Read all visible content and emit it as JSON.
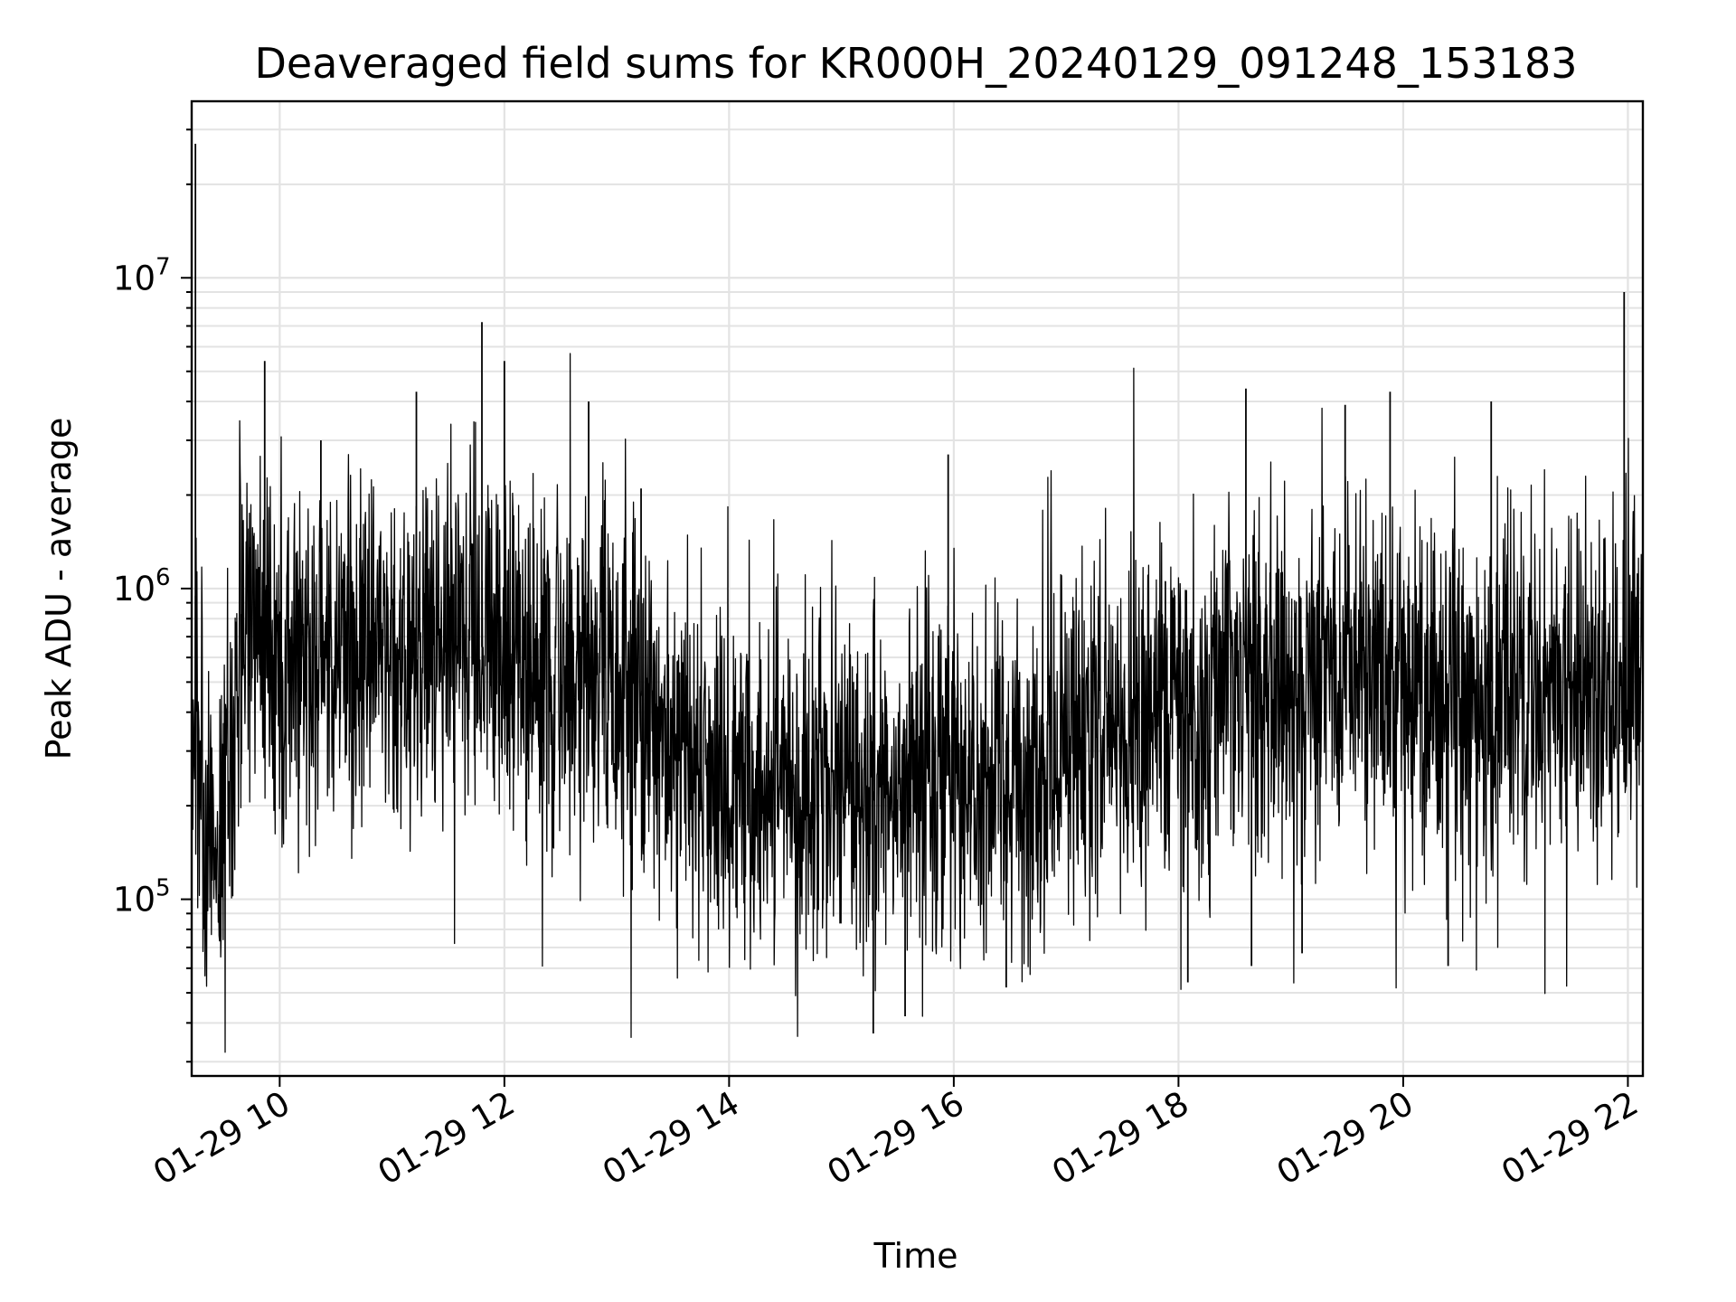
{
  "chart_data": {
    "type": "line",
    "title": "Deaveraged field sums for KR000H_20240129_091248_153183",
    "xlabel": "Time",
    "ylabel": "Peak ADU - average",
    "y_scale": "log",
    "grid": true,
    "line_color": "#000000",
    "x_ticks": [
      {
        "value": "2024-01-29 10:00",
        "label": "01-29 10"
      },
      {
        "value": "2024-01-29 12:00",
        "label": "01-29 12"
      },
      {
        "value": "2024-01-29 14:00",
        "label": "01-29 14"
      },
      {
        "value": "2024-01-29 16:00",
        "label": "01-29 16"
      },
      {
        "value": "2024-01-29 18:00",
        "label": "01-29 18"
      },
      {
        "value": "2024-01-29 20:00",
        "label": "01-29 20"
      },
      {
        "value": "2024-01-29 22:00",
        "label": "01-29 22"
      }
    ],
    "y_ticks": [
      {
        "value": 100000,
        "base": "10",
        "exp": "5"
      },
      {
        "value": 1000000,
        "base": "10",
        "exp": "6"
      },
      {
        "value": 10000000,
        "base": "10",
        "exp": "7"
      }
    ],
    "xlim": [
      "2024-01-29 09:13",
      "2024-01-29 22:08"
    ],
    "ylim": [
      27000,
      37000000
    ],
    "series": [
      {
        "x": [
          "2024-01-29 09:13",
          "2024-01-29 09:20",
          "2024-01-29 09:30",
          "2024-01-29 09:40",
          "2024-01-29 09:50",
          "2024-01-29 10:00",
          "2024-01-29 10:15",
          "2024-01-29 10:30",
          "2024-01-29 10:45",
          "2024-01-29 11:00",
          "2024-01-29 11:15",
          "2024-01-29 11:30",
          "2024-01-29 11:45",
          "2024-01-29 12:00",
          "2024-01-29 12:15",
          "2024-01-29 12:30",
          "2024-01-29 12:45",
          "2024-01-29 13:00",
          "2024-01-29 13:15",
          "2024-01-29 13:30",
          "2024-01-29 13:45",
          "2024-01-29 14:00",
          "2024-01-29 14:15",
          "2024-01-29 14:30",
          "2024-01-29 14:45",
          "2024-01-29 15:00",
          "2024-01-29 15:15",
          "2024-01-29 15:30",
          "2024-01-29 15:45",
          "2024-01-29 16:00",
          "2024-01-29 16:15",
          "2024-01-29 16:30",
          "2024-01-29 16:45",
          "2024-01-29 17:00",
          "2024-01-29 17:15",
          "2024-01-29 17:30",
          "2024-01-29 17:45",
          "2024-01-29 18:00",
          "2024-01-29 18:15",
          "2024-01-29 18:30",
          "2024-01-29 18:45",
          "2024-01-29 19:00",
          "2024-01-29 19:15",
          "2024-01-29 19:30",
          "2024-01-29 19:45",
          "2024-01-29 20:00",
          "2024-01-29 20:15",
          "2024-01-29 20:30",
          "2024-01-29 20:45",
          "2024-01-29 21:00",
          "2024-01-29 21:15",
          "2024-01-29 21:30",
          "2024-01-29 21:45",
          "2024-01-29 22:00",
          "2024-01-29 22:08"
        ],
        "values": [
          400000,
          150000,
          180000,
          650000,
          700000,
          600000,
          620000,
          580000,
          600000,
          620000,
          600000,
          630000,
          650000,
          640000,
          600000,
          520000,
          480000,
          460000,
          450000,
          300000,
          260000,
          230000,
          220000,
          210000,
          200000,
          210000,
          220000,
          240000,
          250000,
          250000,
          245000,
          260000,
          280000,
          300000,
          320000,
          340000,
          360000,
          380000,
          420000,
          450000,
          480000,
          500000,
          520000,
          500000,
          490000,
          500000,
          520000,
          480000,
          500000,
          520000,
          500000,
          480000,
          470000,
          500000,
          520000
        ]
      }
    ],
    "spikes": [
      {
        "x": "2024-01-29 09:15",
        "y": 27000000
      },
      {
        "x": "2024-01-29 09:52",
        "y": 5400000
      },
      {
        "x": "2024-01-29 10:22",
        "y": 3000000
      },
      {
        "x": "2024-01-29 11:13",
        "y": 4300000
      },
      {
        "x": "2024-01-29 11:48",
        "y": 7200000
      },
      {
        "x": "2024-01-29 12:00",
        "y": 5400000
      },
      {
        "x": "2024-01-29 12:45",
        "y": 4000000
      },
      {
        "x": "2024-01-29 13:13",
        "y": 2100000
      },
      {
        "x": "2024-01-29 15:57",
        "y": 2700000
      },
      {
        "x": "2024-01-29 18:36",
        "y": 4400000
      },
      {
        "x": "2024-01-29 19:29",
        "y": 3900000
      },
      {
        "x": "2024-01-29 19:53",
        "y": 4300000
      },
      {
        "x": "2024-01-29 20:47",
        "y": 4000000
      },
      {
        "x": "2024-01-29 21:58",
        "y": 9000000
      },
      {
        "x": "2024-01-29 15:17",
        "y": 37000
      },
      {
        "x": "2024-01-29 15:34",
        "y": 42000
      },
      {
        "x": "2024-01-29 09:28",
        "y": 85000
      },
      {
        "x": "2024-01-29 16:28",
        "y": 52000
      },
      {
        "x": "2024-01-29 18:05",
        "y": 54000
      },
      {
        "x": "2024-01-29 18:39",
        "y": 61000
      },
      {
        "x": "2024-01-29 19:06",
        "y": 67000
      },
      {
        "x": "2024-01-29 20:24",
        "y": 61000
      }
    ]
  }
}
